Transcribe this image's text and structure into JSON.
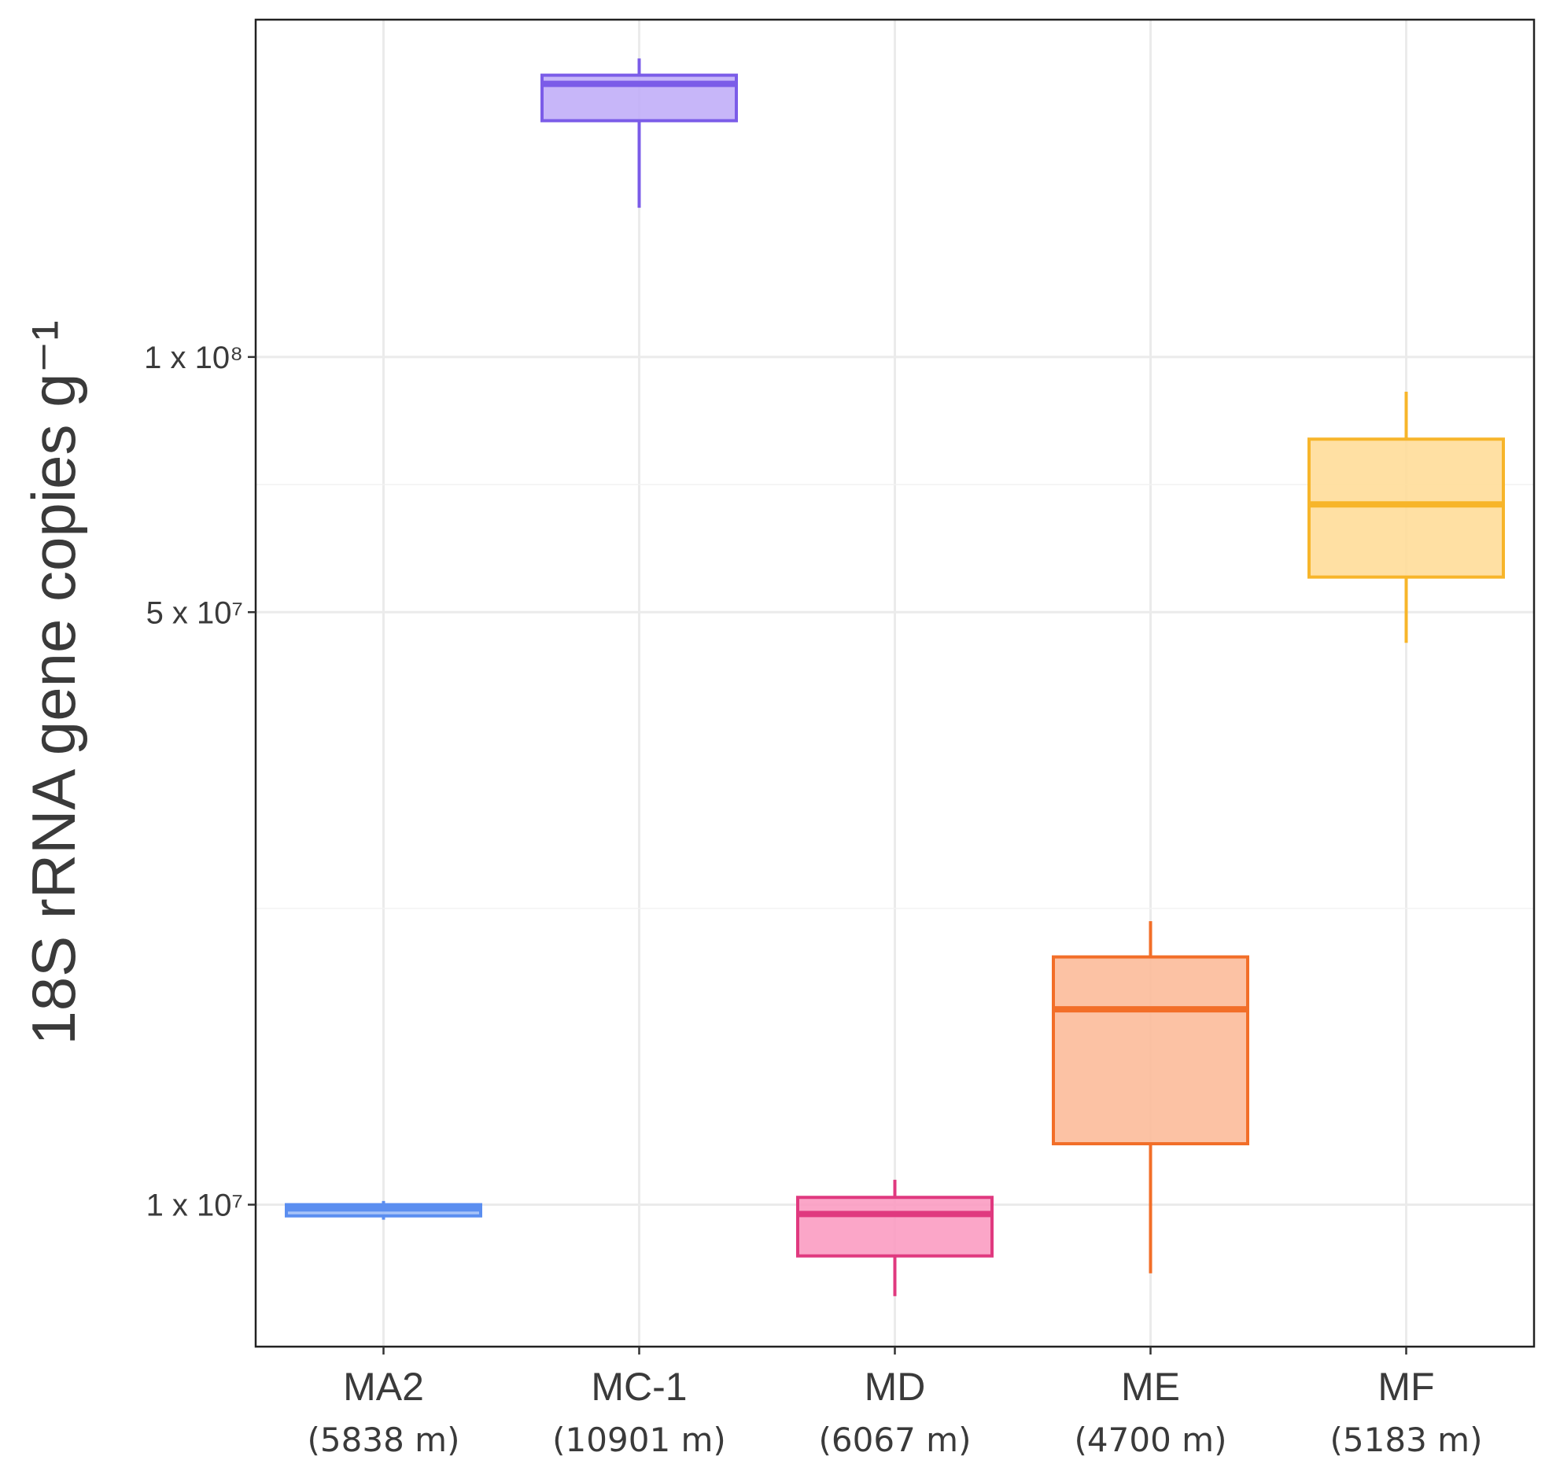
{
  "chart_data": {
    "type": "box",
    "title": "",
    "xlabel": "",
    "ylabel": "18S rRNA gene copies g⁻¹",
    "y_scale": "log10",
    "ylim": [
      6800000,
      250000000
    ],
    "yticks": [
      {
        "value": 10000000,
        "label": "1 x 10⁷"
      },
      {
        "value": 50000000,
        "label": "5 x 10⁷"
      },
      {
        "value": 100000000,
        "label": "1 x 10⁸"
      }
    ],
    "grid": true,
    "categories": [
      {
        "name": "MA2",
        "depth": "(5838 m)",
        "color": "#5b8ef0",
        "fill": "#9dbcf7",
        "min": 9600000,
        "q1": 9700000,
        "median": 9900000,
        "q3": 10000000,
        "max": 10100000
      },
      {
        "name": "MC-1",
        "depth": "(10901 m)",
        "color": "#7b5ce8",
        "fill": "#c1aef8",
        "min": 150000000,
        "q1": 190000000,
        "median": 210000000,
        "q3": 215000000,
        "max": 225000000
      },
      {
        "name": "MD",
        "depth": "(6067 m)",
        "color": "#e0397f",
        "fill": "#fb9cc2",
        "min": 7800000,
        "q1": 8700000,
        "median": 9750000,
        "q3": 10200000,
        "max": 10700000
      },
      {
        "name": "ME",
        "depth": "(4700 m)",
        "color": "#f26e28",
        "fill": "#fcbb9a",
        "min": 8300000,
        "q1": 11800000,
        "median": 17000000,
        "q3": 19600000,
        "max": 21600000
      },
      {
        "name": "MF",
        "depth": "(5183 m)",
        "color": "#f7b52a",
        "fill": "#ffdd99",
        "min": 46000000,
        "q1": 55000000,
        "median": 67000000,
        "q3": 80000000,
        "max": 91000000
      }
    ]
  }
}
